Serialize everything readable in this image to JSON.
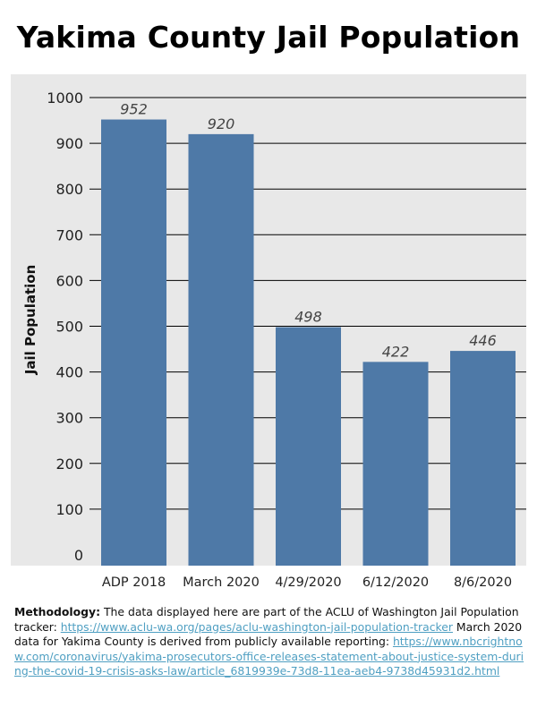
{
  "title": "Yakima County Jail Population",
  "colors": {
    "bar": "#4e79a7",
    "plot_background": "#e8e8e8",
    "gridline": "#000000",
    "link": "#4f9fc2"
  },
  "chart_data": {
    "type": "bar",
    "title": "Yakima County Jail Population",
    "xlabel": "",
    "ylabel": "Jail Population",
    "categories": [
      "ADP 2018",
      "March 2020",
      "4/29/2020",
      "6/12/2020",
      "8/6/2020"
    ],
    "values": [
      952,
      920,
      498,
      422,
      446
    ],
    "data_labels": [
      "952",
      "920",
      "498",
      "422",
      "446"
    ],
    "ylim": [
      0,
      1000
    ],
    "yticks": [
      0,
      100,
      200,
      300,
      400,
      500,
      600,
      700,
      800,
      900,
      1000
    ],
    "ytick_labels": [
      "0",
      "100",
      "200",
      "300",
      "400",
      "500",
      "600",
      "700",
      "800",
      "900",
      "1000"
    ],
    "grid": true,
    "legend": "none"
  },
  "methodology": {
    "label": "Methodology:",
    "text1": " The data displayed here are part of the ACLU of Washington Jail Population tracker: ",
    "link1": "https://www.aclu-wa.org/pages/aclu-washington-jail-population-tracker",
    "text2": " March 2020 data for Yakima County is derived from publicly available reporting: ",
    "link2": "https://www.nbcrightnow.com/coronavirus/yakima-prosecutors-office-releases-statement-about-justice-system-during-the-covid-19-crisis-asks-law/article_6819939e-73d8-11ea-aeb4-9738d45931d2.html"
  }
}
